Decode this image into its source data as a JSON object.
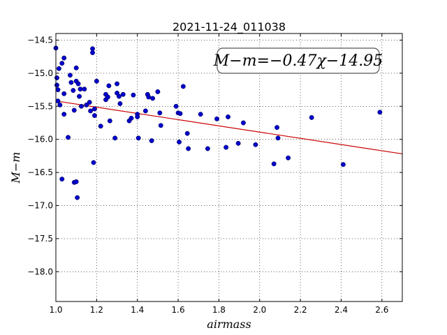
{
  "chart_data": {
    "type": "scatter",
    "title": "2021-11-24_011038",
    "xlabel": "airmass",
    "ylabel": "M−m",
    "xlim": [
      1.0,
      2.7
    ],
    "ylim": [
      -14.4,
      -18.45
    ],
    "y_inverted": true,
    "grid": true,
    "x_ticks": [
      "1.0",
      "1.2",
      "1.4",
      "1.6",
      "1.8",
      "2.0",
      "2.2",
      "2.4",
      "2.6"
    ],
    "y_ticks": [
      "−14.5",
      "−15.0",
      "−15.5",
      "−16.0",
      "−16.5",
      "−17.0",
      "−17.5",
      "−18.0"
    ],
    "annotation": "M−m=−0.47χ−14.95",
    "fit": {
      "slope": -0.47,
      "intercept": -14.95,
      "color": "#cc0000"
    },
    "point_color": "#0000cc",
    "points": [
      [
        1.0,
        -14.62
      ],
      [
        1.005,
        -15.07
      ],
      [
        1.005,
        -15.18
      ],
      [
        1.01,
        -15.25
      ],
      [
        1.01,
        -15.42
      ],
      [
        1.015,
        -14.93
      ],
      [
        1.02,
        -15.48
      ],
      [
        1.03,
        -14.85
      ],
      [
        1.04,
        -14.77
      ],
      [
        1.04,
        -15.31
      ],
      [
        1.04,
        -15.62
      ],
      [
        1.06,
        -15.97
      ],
      [
        1.07,
        -15.03
      ],
      [
        1.075,
        -15.14
      ],
      [
        1.085,
        -15.26
      ],
      [
        1.09,
        -15.56
      ],
      [
        1.1,
        -15.12
      ],
      [
        1.1,
        -14.92
      ],
      [
        1.11,
        -15.16
      ],
      [
        1.115,
        -15.35
      ],
      [
        1.12,
        -15.24
      ],
      [
        1.125,
        -15.5
      ],
      [
        1.14,
        -15.24
      ],
      [
        1.15,
        -15.48
      ],
      [
        1.165,
        -15.44
      ],
      [
        1.17,
        -15.57
      ],
      [
        1.18,
        -14.63
      ],
      [
        1.18,
        -14.69
      ],
      [
        1.19,
        -15.54
      ],
      [
        1.19,
        -15.64
      ],
      [
        1.2,
        -15.12
      ],
      [
        1.22,
        -15.8
      ],
      [
        1.245,
        -15.32
      ],
      [
        1.245,
        -15.4
      ],
      [
        1.255,
        -15.36
      ],
      [
        1.26,
        -15.19
      ],
      [
        1.265,
        -15.72
      ],
      [
        1.29,
        -15.98
      ],
      [
        1.3,
        -15.16
      ],
      [
        1.3,
        -15.3
      ],
      [
        1.31,
        -15.35
      ],
      [
        1.315,
        -15.46
      ],
      [
        1.33,
        -15.32
      ],
      [
        1.36,
        -15.72
      ],
      [
        1.37,
        -15.68
      ],
      [
        1.38,
        -15.33
      ],
      [
        1.4,
        -15.62
      ],
      [
        1.4,
        -15.66
      ],
      [
        1.405,
        -15.98
      ],
      [
        1.44,
        -15.57
      ],
      [
        1.45,
        -15.32
      ],
      [
        1.455,
        -15.36
      ],
      [
        1.47,
        -16.02
      ],
      [
        1.475,
        -15.38
      ],
      [
        1.5,
        -15.28
      ],
      [
        1.51,
        -15.6
      ],
      [
        1.515,
        -15.79
      ],
      [
        1.59,
        -15.5
      ],
      [
        1.6,
        -15.6
      ],
      [
        1.605,
        -16.04
      ],
      [
        1.61,
        -15.61
      ],
      [
        1.625,
        -15.2
      ],
      [
        1.645,
        -15.91
      ],
      [
        1.65,
        -16.14
      ],
      [
        1.71,
        -15.62
      ],
      [
        1.745,
        -16.14
      ],
      [
        1.79,
        -15.69
      ],
      [
        1.835,
        -16.12
      ],
      [
        1.845,
        -15.66
      ],
      [
        1.895,
        -16.06
      ],
      [
        1.92,
        -15.75
      ],
      [
        1.98,
        -16.08
      ],
      [
        2.07,
        -16.37
      ],
      [
        2.085,
        -15.82
      ],
      [
        2.09,
        -15.98
      ],
      [
        2.14,
        -16.28
      ],
      [
        2.255,
        -15.67
      ],
      [
        2.41,
        -16.38
      ],
      [
        2.59,
        -15.59
      ],
      [
        1.03,
        -16.6
      ],
      [
        1.09,
        -16.65
      ],
      [
        1.1,
        -16.64
      ],
      [
        1.105,
        -16.88
      ],
      [
        1.185,
        -16.35
      ]
    ]
  }
}
